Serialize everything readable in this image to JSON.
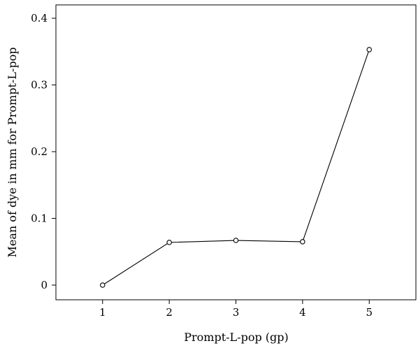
{
  "chart_data": {
    "type": "line",
    "xlabel": "Prompt-L-pop (gp)",
    "ylabel": "Mean of dye in mm for Prompt-L-pop",
    "x": [
      1,
      2,
      3,
      4,
      5
    ],
    "x_ticks": [
      "1",
      "2",
      "3",
      "4",
      "5"
    ],
    "y_ticks": [
      "0",
      "0.1",
      "0.2",
      "0.3",
      "0.4"
    ],
    "y_tick_values": [
      0,
      0.1,
      0.2,
      0.3,
      0.4
    ],
    "xlim": [
      0.3,
      5.7
    ],
    "ylim": [
      -0.022,
      0.42
    ],
    "series": [
      {
        "values": [
          0.0,
          0.064,
          0.067,
          0.065,
          0.353
        ],
        "marker": "open-circle",
        "color": "#000000"
      }
    ],
    "grid": false
  }
}
